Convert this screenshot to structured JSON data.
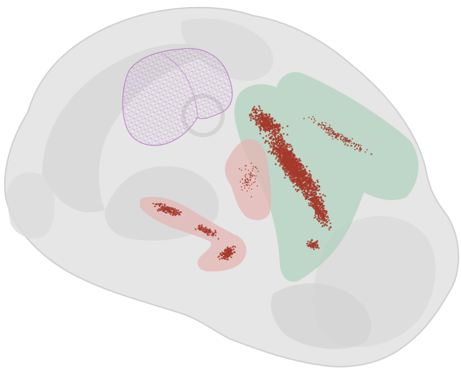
{
  "scene": {
    "kind": "3d-brain-render",
    "view": "sagittal-oblique",
    "background_color": "#ffffff"
  },
  "brain": {
    "name": "whole-brain-outline",
    "fill_color": "#e6e6e6",
    "inner_shade_color": "#d2d2d2",
    "outline_color": "#cfcfcf"
  },
  "regions": [
    {
      "name": "mesh-region",
      "color": "#b77fc4",
      "style": "wireframe"
    },
    {
      "name": "green-region",
      "color": "#a9cfb9",
      "style": "solid"
    },
    {
      "name": "pink-region-center",
      "color": "#e3b6b3",
      "style": "solid"
    },
    {
      "name": "pink-region-left",
      "color": "#e3b6b3",
      "style": "solid"
    }
  ],
  "cells": {
    "color": "#a43a2c",
    "marker": "dot"
  }
}
